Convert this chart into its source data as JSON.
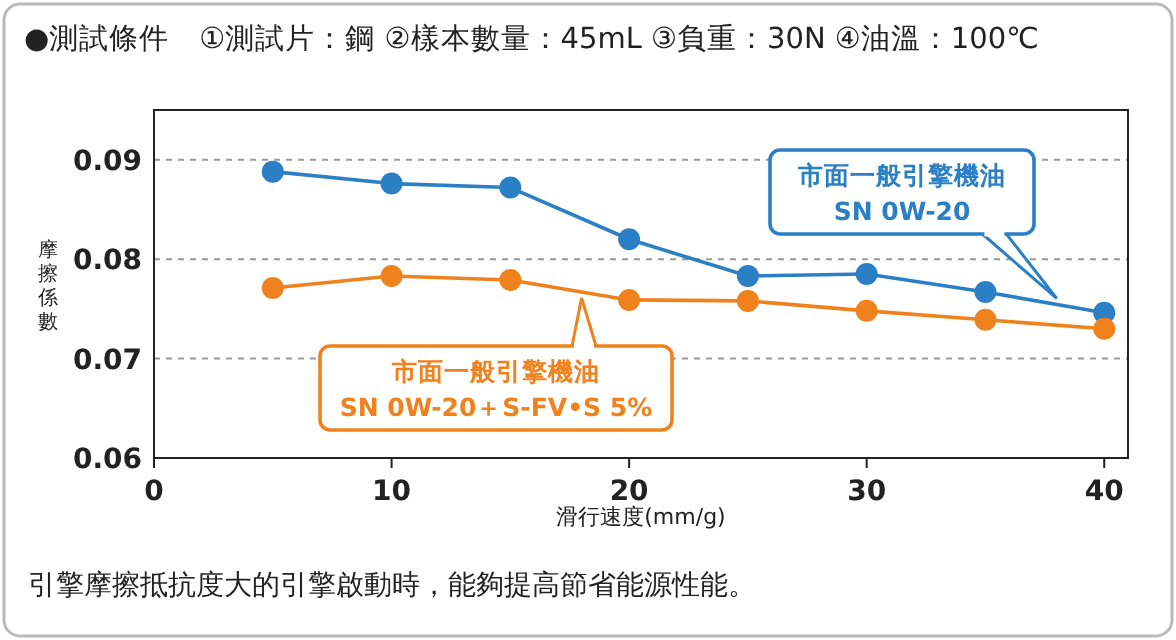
{
  "chart_data": {
    "type": "line",
    "title": "●測試條件　①測試片：鋼 ②樣本數量：45mL ③負重：30N ④油溫：100℃",
    "xlabel": "滑行速度(mm/g)",
    "ylabel": "摩擦係數",
    "annotations": [
      "引擎摩擦抵抗度大的引擎啟動時，能夠提高節省能源性能。"
    ],
    "x": [
      5,
      10,
      15,
      20,
      25,
      30,
      35,
      40
    ],
    "series": [
      {
        "name": "市面一般引擎機油 SN 0W-20",
        "color": "#2b7fc4",
        "values": [
          0.0888,
          0.0876,
          0.0872,
          0.082,
          0.0783,
          0.0785,
          0.0767,
          0.0746
        ]
      },
      {
        "name": "市面一般引擎機油 SN 0W-20＋S-FV•S 5%",
        "color": "#f0821e",
        "values": [
          0.0771,
          0.0783,
          0.0779,
          0.0759,
          0.0758,
          0.0748,
          0.0739,
          0.073
        ]
      }
    ],
    "xlim": [
      0,
      41
    ],
    "ylim": [
      0.06,
      0.095
    ],
    "xticks": [
      0,
      10,
      20,
      30,
      40
    ],
    "yticks": [
      0.06,
      0.07,
      0.08,
      0.09
    ],
    "grid": "y",
    "marker": "circle",
    "line_style": "solid",
    "legend": "bottom left"
  }
}
